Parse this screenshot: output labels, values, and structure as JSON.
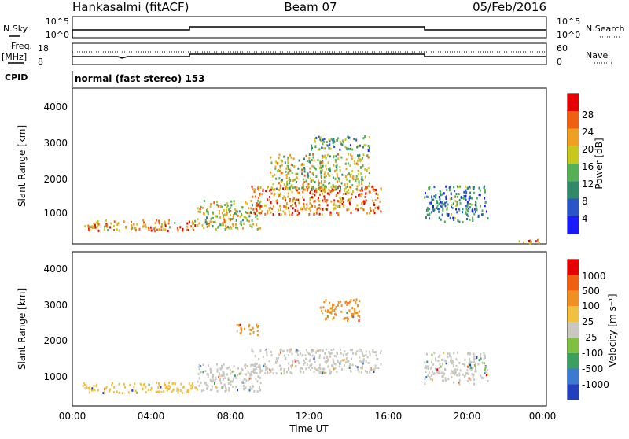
{
  "header": {
    "station": "Hankasalmi (fitACF)",
    "beam": "Beam 07",
    "date": "05/Feb/2016"
  },
  "noise_panel": {
    "left_label": "N.Sky",
    "right_label": "N.Search",
    "left_ticks": [
      "10^5",
      "10^0"
    ],
    "right_ticks": [
      "10^5",
      "10^0"
    ]
  },
  "freq_panel": {
    "left_label_line1": "Freq.",
    "left_label_line2": "[MHz]",
    "right_label": "Nave",
    "left_ticks": [
      "18",
      "8"
    ],
    "right_ticks": [
      "60",
      "0"
    ]
  },
  "cpid": {
    "label": "CPID",
    "text": "normal (fast stereo) 153"
  },
  "chart_data": [
    {
      "type": "heatmap",
      "quantity": "power",
      "ylabel": "Slant Range [km]",
      "yticks": [
        "1000",
        "2000",
        "3000",
        "4000"
      ],
      "colorbar_label": "Power [dB]",
      "colorbar_ticks": [
        "4",
        "8",
        "12",
        "16",
        "20",
        "24",
        "28"
      ],
      "colorbar_colors": [
        "#1a1aff",
        "#2a55c8",
        "#2f8a6a",
        "#55b055",
        "#c8c81a",
        "#f0a020",
        "#f06010",
        "#e80000"
      ],
      "blobs": [
        {
          "t0": 0.5,
          "t1": 6.3,
          "r0": 550,
          "r1": 850,
          "level": 0.72
        },
        {
          "t0": 6.3,
          "t1": 9.5,
          "r0": 600,
          "r1": 1400,
          "level": 0.55
        },
        {
          "t0": 9.0,
          "t1": 15.6,
          "r0": 1000,
          "r1": 1800,
          "level": 0.75
        },
        {
          "t0": 10.0,
          "t1": 15.0,
          "r0": 1700,
          "r1": 2700,
          "level": 0.55
        },
        {
          "t0": 12.0,
          "t1": 15.0,
          "r0": 2800,
          "r1": 3200,
          "level": 0.35
        },
        {
          "t0": 17.8,
          "t1": 21.0,
          "r0": 800,
          "r1": 1800,
          "level": 0.3
        },
        {
          "t0": 22.5,
          "t1": 24.0,
          "r0": 180,
          "r1": 300,
          "level": 0.8
        }
      ]
    },
    {
      "type": "heatmap",
      "quantity": "velocity",
      "ylabel": "Slant Range [km]",
      "yticks": [
        "1000",
        "2000",
        "3000",
        "4000"
      ],
      "xticks": [
        "00:00",
        "04:00",
        "08:00",
        "12:00",
        "16:00",
        "20:00",
        "00:00"
      ],
      "xlabel": "Time UT",
      "colorbar_label": "Velocity [m s⁻¹]",
      "colorbar_ticks": [
        "1000",
        "500",
        "100",
        "25",
        "-25",
        "-100",
        "-500",
        "-1000"
      ],
      "colorbar_colors": [
        "#2040c0",
        "#3a7ad0",
        "#3aa060",
        "#80c040",
        "#c8c8c0",
        "#f0c040",
        "#f09020",
        "#f06010",
        "#e80000"
      ],
      "blobs": [
        {
          "t0": 0.5,
          "t1": 6.3,
          "r0": 550,
          "r1": 850,
          "color": "#f0c040"
        },
        {
          "t0": 6.3,
          "t1": 9.5,
          "r0": 600,
          "r1": 1400,
          "color": "#c8c8c0"
        },
        {
          "t0": 9.0,
          "t1": 15.6,
          "r0": 1100,
          "r1": 1800,
          "color": "#c8c8c0"
        },
        {
          "t0": 8.3,
          "t1": 9.5,
          "r0": 2200,
          "r1": 2500,
          "color": "#f09020"
        },
        {
          "t0": 12.5,
          "t1": 14.5,
          "r0": 2600,
          "r1": 3200,
          "color": "#f09020"
        },
        {
          "t0": 17.8,
          "t1": 21.0,
          "r0": 800,
          "r1": 1700,
          "color": "#c8c8c0"
        }
      ]
    }
  ]
}
